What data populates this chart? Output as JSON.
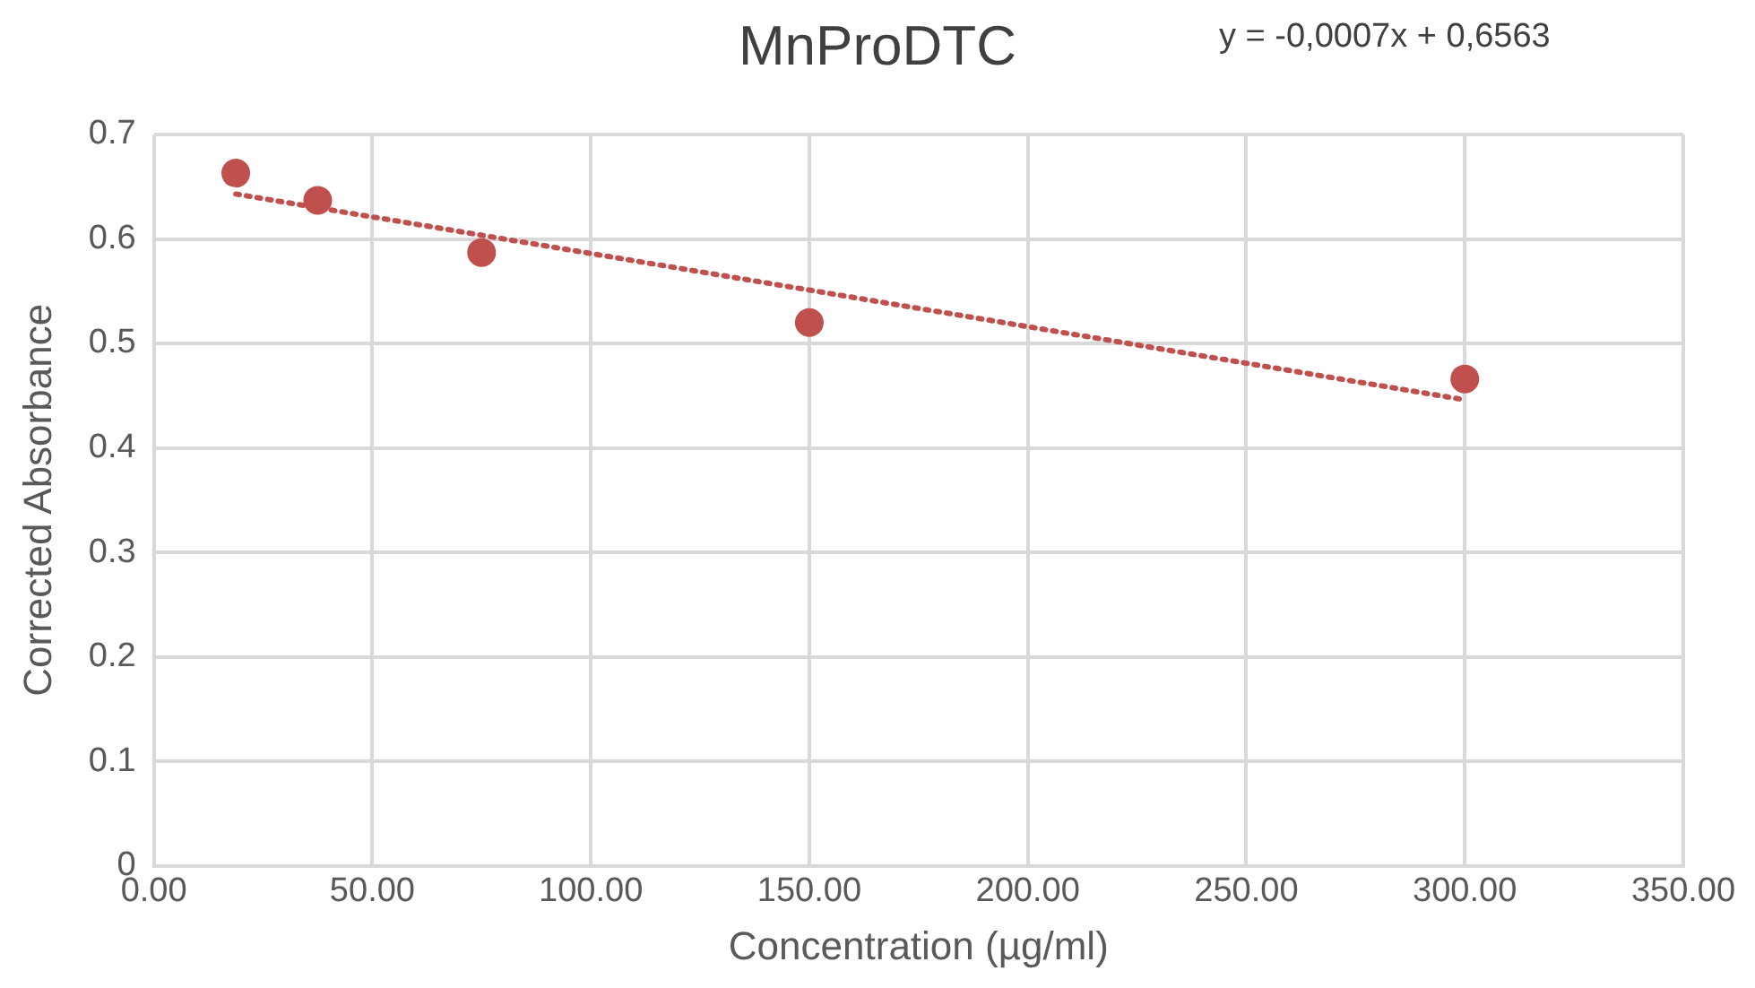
{
  "chart_data": {
    "type": "scatter",
    "title": "MnProDTC",
    "xlabel": "Concentration (µg/ml)",
    "ylabel": "Corrected Absorbance",
    "annotations": [
      "y = -0,0007x + 0,6563"
    ],
    "series": [
      {
        "type": "scatter",
        "color": "#c0504d",
        "x": [
          18.75,
          37.5,
          75,
          150,
          300
        ],
        "values": [
          0.663,
          0.637,
          0.587,
          0.52,
          0.466
        ],
        "marker": "circle"
      },
      {
        "type": "line",
        "color": "#c0504d",
        "x": [
          18.75,
          300
        ],
        "values": [
          0.643,
          0.446
        ],
        "line_style": "dotted",
        "marker": "none"
      }
    ],
    "xlim": [
      0,
      350
    ],
    "xticks": [
      {
        "value": 0,
        "label": "0.00"
      },
      {
        "value": 50,
        "label": "50.00"
      },
      {
        "value": 100,
        "label": "100.00"
      },
      {
        "value": 150,
        "label": "150.00"
      },
      {
        "value": 200,
        "label": "200.00"
      },
      {
        "value": 250,
        "label": "250.00"
      },
      {
        "value": 300,
        "label": "300.00"
      },
      {
        "value": 350,
        "label": "350.00"
      }
    ],
    "ylim": [
      0,
      0.7
    ],
    "yticks": [
      0,
      0.1,
      0.2,
      0.3,
      0.4,
      0.5,
      0.6,
      0.7
    ],
    "grid": true,
    "legend": false
  }
}
